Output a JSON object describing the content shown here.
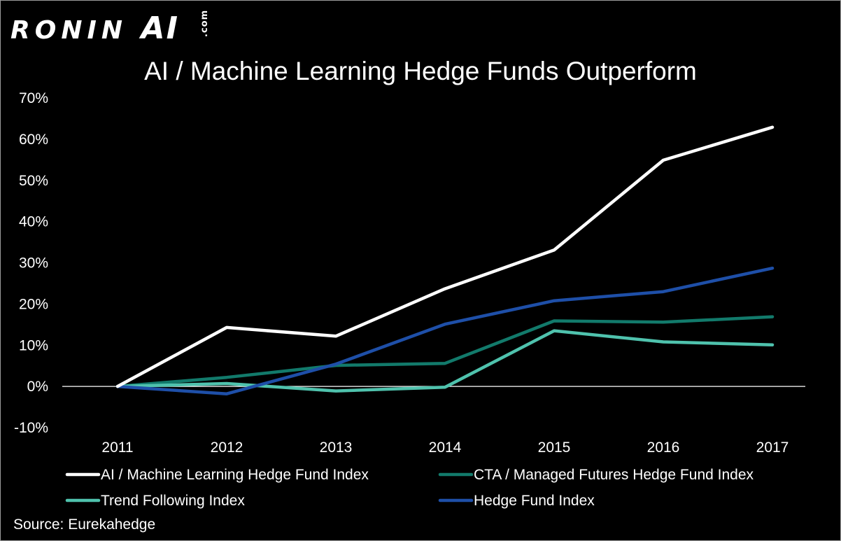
{
  "logo": {
    "main": "RONIN",
    "ai": "AI",
    "suffix": ".com"
  },
  "source": "Source: Eurekahedge",
  "colors": {
    "background": "#000000",
    "axis_text": "#ffffff",
    "ai_ml": "#ffffff",
    "cta": "#127a6b",
    "trend": "#4fc2ad",
    "hedge": "#1e4fa8"
  },
  "chart_data": {
    "type": "line",
    "title": "AI / Machine Learning Hedge Funds Outperform",
    "xlabel": "",
    "ylabel": "",
    "categories": [
      "2011",
      "2012",
      "2013",
      "2014",
      "2015",
      "2016",
      "2017"
    ],
    "ylim": [
      -10,
      70
    ],
    "yticks": [
      "-10%",
      "0%",
      "10%",
      "20%",
      "30%",
      "40%",
      "50%",
      "60%",
      "70%"
    ],
    "ytick_values": [
      -10,
      0,
      10,
      20,
      30,
      40,
      50,
      60,
      70
    ],
    "grid": false,
    "legend_position": "bottom",
    "series": [
      {
        "name": "AI / Machine Learning Hedge Fund Index",
        "color": "#ffffff",
        "values": [
          0,
          14.3,
          12.2,
          23.7,
          33.1,
          54.9,
          62.9
        ]
      },
      {
        "name": "CTA / Managed Futures Hedge Fund Index",
        "color": "#127a6b",
        "values": [
          0,
          2.2,
          5.1,
          5.6,
          15.9,
          15.6,
          16.9
        ]
      },
      {
        "name": "Trend Following Index",
        "color": "#4fc2ad",
        "values": [
          0,
          0.7,
          -1.1,
          -0.2,
          13.5,
          10.8,
          10.1
        ]
      },
      {
        "name": "Hedge Fund Index",
        "color": "#1e4fa8",
        "values": [
          0,
          -1.8,
          5.4,
          15.1,
          20.8,
          23.0,
          28.7
        ]
      }
    ]
  }
}
